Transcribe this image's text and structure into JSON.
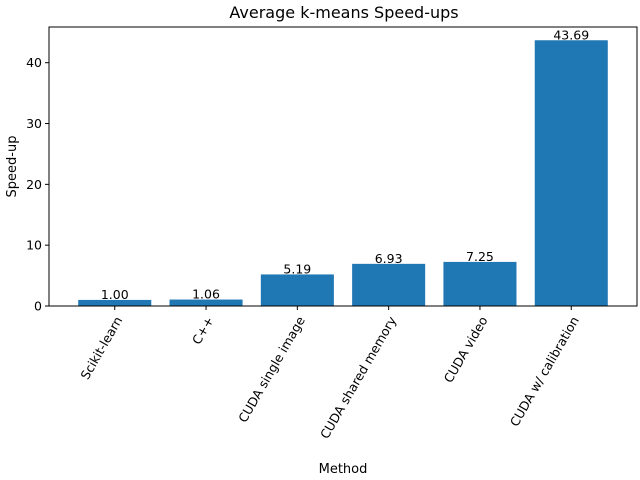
{
  "chart_data": {
    "type": "bar",
    "title": "Average k-means Speed-ups",
    "xlabel": "Method",
    "ylabel": "Speed-up",
    "categories": [
      "Scikit-learn",
      "C++",
      "CUDA single image",
      "CUDA shared memory",
      "CUDA video",
      "CUDA w/ calibration"
    ],
    "values": [
      1.0,
      1.06,
      5.19,
      6.93,
      7.25,
      43.69
    ],
    "data_labels": [
      "1.00",
      "1.06",
      "5.19",
      "6.93",
      "7.25",
      "43.69"
    ],
    "ylim": [
      0,
      45.87
    ],
    "yticks": [
      0,
      10,
      20,
      30,
      40
    ],
    "ytick_labels": [
      "0",
      "10",
      "20",
      "30",
      "40"
    ],
    "bar_color": "#1f77b4",
    "grid": false,
    "legend": "none"
  }
}
